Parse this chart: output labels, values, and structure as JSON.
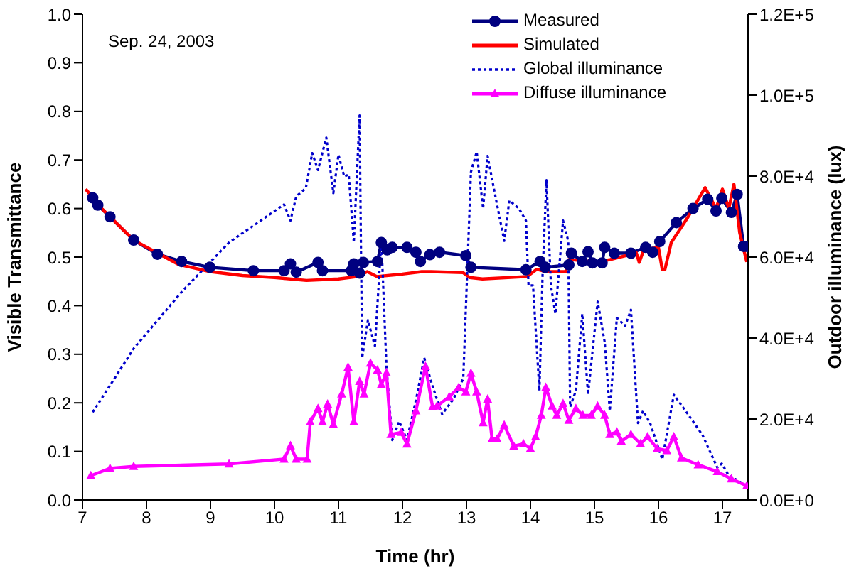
{
  "chart_data": {
    "type": "line",
    "xlabel": "Time (hr)",
    "ylabel": "Visible Transmittance",
    "y2label": "Outdoor illuminance (lux)",
    "annotations": [
      "Sep. 24,  2003"
    ],
    "legend": "top right",
    "xlim": [
      7,
      17.4
    ],
    "xticks": [
      7,
      8,
      9,
      10,
      11,
      12,
      13,
      14,
      15,
      16,
      17
    ],
    "ylim": [
      0,
      1
    ],
    "yticks": [
      {
        "value": 0,
        "label": "0.0"
      },
      0.1,
      0.2,
      0.3,
      0.4,
      0.5,
      0.6,
      0.7,
      0.8,
      0.9,
      {
        "value": 1,
        "label": "1.0"
      }
    ],
    "y2lim": [
      0,
      120000
    ],
    "y2ticks": [
      {
        "value": 0,
        "label": "0.0E+0"
      },
      {
        "value": 20000,
        "label": "2.0E+4"
      },
      {
        "value": 40000,
        "label": "4.0E+4"
      },
      {
        "value": 60000,
        "label": "6.0E+4"
      },
      {
        "value": 80000,
        "label": "8.0E+4"
      },
      {
        "value": 100000,
        "label": "1.0E+5"
      },
      {
        "value": 120000,
        "label": "1.2E+5"
      }
    ],
    "series": [
      {
        "name": "Measured",
        "color": "#000080",
        "marker": "circle",
        "line_style": "solid",
        "x": [
          7.16,
          7.24,
          7.43,
          7.8,
          8.17,
          8.55,
          8.99,
          9.67,
          10.15,
          10.25,
          10.34,
          10.68,
          10.75,
          11.2,
          11.24,
          11.33,
          11.39,
          11.61,
          11.67,
          11.76,
          11.84,
          12.07,
          12.21,
          12.28,
          12.43,
          12.58,
          12.99,
          13.07,
          13.93,
          14.15,
          14.23,
          14.6,
          14.64,
          14.81,
          14.9,
          14.97,
          15.12,
          15.16,
          15.31,
          15.57,
          15.8,
          15.91,
          16.02,
          16.28,
          16.54,
          16.77,
          16.9,
          16.99,
          17.14,
          17.23,
          17.33,
          17.38
        ],
        "values": [
          0.622,
          0.607,
          0.583,
          0.535,
          0.506,
          0.491,
          0.479,
          0.472,
          0.472,
          0.486,
          0.469,
          0.489,
          0.472,
          0.472,
          0.486,
          0.467,
          0.489,
          0.491,
          0.53,
          0.515,
          0.52,
          0.52,
          0.51,
          0.491,
          0.505,
          0.51,
          0.503,
          0.479,
          0.474,
          0.491,
          0.479,
          0.484,
          0.508,
          0.491,
          0.511,
          0.488,
          0.488,
          0.52,
          0.508,
          0.508,
          0.52,
          0.51,
          0.532,
          0.571,
          0.6,
          0.619,
          0.595,
          0.621,
          0.592,
          0.629,
          0.522,
          0.522
        ]
      },
      {
        "name": "Simulated",
        "color": "#ff0000",
        "marker": "none",
        "line_style": "solid",
        "x": [
          7.05,
          7.3,
          7.8,
          8.5,
          9,
          9.5,
          10,
          10.5,
          11,
          11.3,
          11.45,
          11.6,
          12,
          12.3,
          12.45,
          12.95,
          13.05,
          13.25,
          13.95,
          14.1,
          14.25,
          14.55,
          14.6,
          15.05,
          15.25,
          15.55,
          15.65,
          15.7,
          15.77,
          16.0,
          16.06,
          16.1,
          16.2,
          16.45,
          16.73,
          16.9,
          17.0,
          17.1,
          17.18,
          17.27,
          17.38
        ],
        "values": [
          0.64,
          0.6,
          0.535,
          0.485,
          0.47,
          0.462,
          0.458,
          0.452,
          0.455,
          0.46,
          0.47,
          0.46,
          0.465,
          0.47,
          0.47,
          0.468,
          0.458,
          0.455,
          0.46,
          0.475,
          0.47,
          0.47,
          0.495,
          0.49,
          0.495,
          0.505,
          0.51,
          0.489,
          0.515,
          0.52,
          0.474,
          0.474,
          0.53,
          0.58,
          0.643,
          0.6,
          0.64,
          0.6,
          0.65,
          0.55,
          0.49
        ]
      },
      {
        "name": "Global illuminance",
        "color": "#0000cc",
        "marker": "none",
        "line_style": "dotted",
        "axis": "y2",
        "x": [
          7.16,
          7.28,
          7.8,
          8.55,
          9.29,
          10.15,
          10.25,
          10.34,
          10.49,
          10.59,
          10.68,
          10.81,
          10.92,
          11.0,
          11.09,
          11.16,
          11.24,
          11.33,
          11.37,
          11.46,
          11.57,
          11.67,
          11.75,
          11.84,
          11.95,
          12.07,
          12.21,
          12.34,
          12.47,
          12.62,
          12.8,
          12.95,
          13.07,
          13.16,
          13.26,
          13.33,
          13.44,
          13.59,
          13.67,
          13.82,
          13.93,
          13.97,
          14.04,
          14.14,
          14.19,
          14.25,
          14.32,
          14.39,
          14.51,
          14.59,
          14.62,
          14.71,
          14.81,
          14.9,
          15.05,
          15.16,
          15.24,
          15.35,
          15.48,
          15.57,
          15.68,
          15.76,
          15.87,
          16.06,
          16.24,
          16.47,
          16.69,
          16.92,
          16.99,
          17.1,
          17.22,
          17.38
        ],
        "values": [
          21700,
          24600,
          37400,
          51400,
          63600,
          73000,
          69000,
          75000,
          77000,
          85700,
          81500,
          89500,
          75800,
          85300,
          79900,
          80400,
          63600,
          95000,
          35100,
          44400,
          38000,
          64200,
          32800,
          14800,
          19400,
          14800,
          24600,
          35100,
          28100,
          21200,
          25000,
          30000,
          81000,
          86000,
          72000,
          85000,
          76000,
          64000,
          74000,
          72000,
          69000,
          53000,
          53000,
          27000,
          56000,
          79000,
          53000,
          46000,
          69000,
          64000,
          23000,
          27000,
          46000,
          26000,
          49000,
          39000,
          22000,
          45000,
          43000,
          47000,
          19000,
          22000,
          19000,
          10000,
          26000,
          21000,
          16000,
          8000,
          9000,
          6000,
          5000,
          3500
        ]
      },
      {
        "name": "Diffuse illuminance",
        "color": "#ff00ff",
        "marker": "triangle",
        "line_style": "solid",
        "axis": "y2",
        "x": [
          7.13,
          7.43,
          7.8,
          9.29,
          10.15,
          10.25,
          10.34,
          10.51,
          10.56,
          10.68,
          10.75,
          10.83,
          10.92,
          11.05,
          11.15,
          11.24,
          11.33,
          11.4,
          11.5,
          11.61,
          11.67,
          11.75,
          11.82,
          11.98,
          12.07,
          12.21,
          12.36,
          12.47,
          12.54,
          12.73,
          12.88,
          12.99,
          13.07,
          13.16,
          13.26,
          13.33,
          13.4,
          13.48,
          13.59,
          13.74,
          13.89,
          14.0,
          14.08,
          14.17,
          14.24,
          14.34,
          14.41,
          14.51,
          14.6,
          14.71,
          14.82,
          14.95,
          15.05,
          15.16,
          15.24,
          15.35,
          15.42,
          15.57,
          15.72,
          15.83,
          15.98,
          16.13,
          16.24,
          16.36,
          16.62,
          16.92,
          17.14,
          17.38
        ],
        "values": [
          6000,
          7800,
          8300,
          8900,
          10100,
          13400,
          10100,
          10100,
          19300,
          22600,
          19300,
          23700,
          18700,
          26200,
          32800,
          19300,
          29300,
          26200,
          33800,
          32100,
          28500,
          31400,
          16200,
          16700,
          13800,
          22000,
          33000,
          23000,
          23200,
          25500,
          27800,
          26700,
          31300,
          26700,
          19100,
          24900,
          15100,
          15100,
          18500,
          13300,
          13900,
          12700,
          15600,
          20900,
          27800,
          23200,
          20900,
          23800,
          19700,
          22600,
          20900,
          20900,
          23200,
          20900,
          16200,
          16800,
          14500,
          16200,
          13900,
          15600,
          12700,
          12200,
          15600,
          10400,
          8700,
          7000,
          5200,
          3500
        ]
      }
    ]
  }
}
